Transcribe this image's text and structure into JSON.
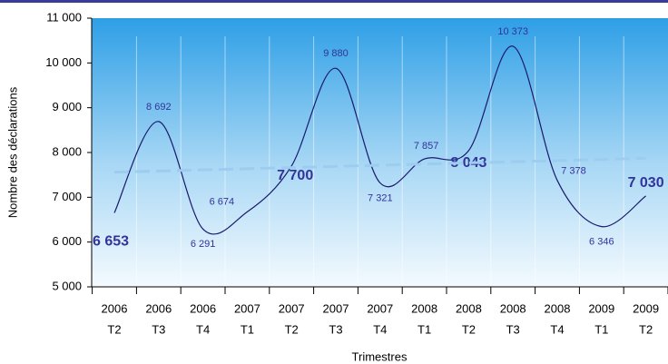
{
  "chart_data": {
    "type": "line",
    "x_label": "Trimestres",
    "y_label": "Nombre des déclarations",
    "categories": [
      [
        "2006",
        "T2"
      ],
      [
        "2006",
        "T3"
      ],
      [
        "2006",
        "T4"
      ],
      [
        "2007",
        "T1"
      ],
      [
        "2007",
        "T2"
      ],
      [
        "2007",
        "T3"
      ],
      [
        "2007",
        "T4"
      ],
      [
        "2008",
        "T1"
      ],
      [
        "2008",
        "T2"
      ],
      [
        "2008",
        "T3"
      ],
      [
        "2008",
        "T4"
      ],
      [
        "2009",
        "T1"
      ],
      [
        "2009",
        "T2"
      ]
    ],
    "series": [
      {
        "color": "#1a1a6e",
        "smooth": true,
        "values": [
          6653,
          8692,
          6291,
          6674,
          7700,
          9880,
          7321,
          7857,
          8043,
          10373,
          7378,
          6346,
          7030
        ],
        "value_labels": [
          "6 653",
          "8 692",
          "6 291",
          "6 674",
          "7 700",
          "9 880",
          "7 321",
          "7 857",
          "8 043",
          "10 373",
          "7 378",
          "6 346",
          "7 030"
        ]
      },
      {
        "color": "#9ccdf0",
        "dashed": true,
        "values": [
          7560,
          7586,
          7612,
          7638,
          7664,
          7690,
          7716,
          7742,
          7768,
          7794,
          7820,
          7846,
          7872
        ]
      }
    ],
    "ylim": [
      5000,
      11000
    ],
    "yticks": [
      {
        "value": 5000,
        "label": "5 000"
      },
      {
        "value": 6000,
        "label": "6 000"
      },
      {
        "value": 7000,
        "label": "7 000"
      },
      {
        "value": 8000,
        "label": "8 000"
      },
      {
        "value": 9000,
        "label": "9 000"
      },
      {
        "value": 10000,
        "label": "10 000"
      },
      {
        "value": 11000,
        "label": "11 000"
      }
    ]
  }
}
